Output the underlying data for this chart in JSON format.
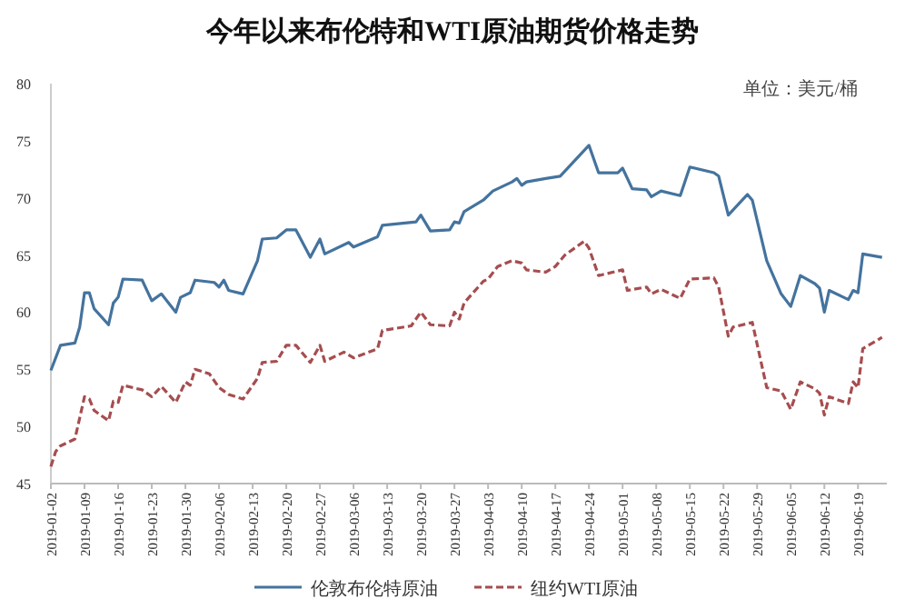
{
  "chart_data": {
    "type": "line",
    "title": "今年以来布伦特和WTI原油期货价格走势",
    "annotations": [
      "单位：美元/桶"
    ],
    "xlim": [
      "2019-01-02",
      "2019-06-25"
    ],
    "xticks": [
      "2019-01-02",
      "2019-01-09",
      "2019-01-16",
      "2019-01-23",
      "2019-01-30",
      "2019-02-06",
      "2019-02-13",
      "2019-02-20",
      "2019-02-27",
      "2019-03-06",
      "2019-03-13",
      "2019-03-20",
      "2019-03-27",
      "2019-04-03",
      "2019-04-10",
      "2019-04-17",
      "2019-04-24",
      "2019-05-01",
      "2019-05-08",
      "2019-05-15",
      "2019-05-22",
      "2019-05-29",
      "2019-06-05",
      "2019-06-12",
      "2019-06-19"
    ],
    "ylim": [
      45,
      80
    ],
    "yticks": [
      45,
      50,
      55,
      60,
      65,
      70,
      75,
      80
    ],
    "grid": false,
    "legend": "bottom",
    "series": [
      {
        "name": "伦敦布伦特原油",
        "color": "#44739e",
        "line_style": "solid",
        "x": [
          "2019-01-02",
          "2019-01-04",
          "2019-01-07",
          "2019-01-08",
          "2019-01-09",
          "2019-01-10",
          "2019-01-11",
          "2019-01-14",
          "2019-01-15",
          "2019-01-16",
          "2019-01-17",
          "2019-01-21",
          "2019-01-23",
          "2019-01-25",
          "2019-01-28",
          "2019-01-29",
          "2019-01-31",
          "2019-02-01",
          "2019-02-05",
          "2019-02-06",
          "2019-02-07",
          "2019-02-08",
          "2019-02-11",
          "2019-02-14",
          "2019-02-15",
          "2019-02-18",
          "2019-02-20",
          "2019-02-22",
          "2019-02-25",
          "2019-02-27",
          "2019-02-28",
          "2019-03-05",
          "2019-03-06",
          "2019-03-11",
          "2019-03-12",
          "2019-03-19",
          "2019-03-20",
          "2019-03-22",
          "2019-03-26",
          "2019-03-27",
          "2019-03-28",
          "2019-03-29",
          "2019-04-02",
          "2019-04-04",
          "2019-04-08",
          "2019-04-09",
          "2019-04-10",
          "2019-04-11",
          "2019-04-15",
          "2019-04-18",
          "2019-04-24",
          "2019-04-26",
          "2019-04-30",
          "2019-05-01",
          "2019-05-03",
          "2019-05-06",
          "2019-05-07",
          "2019-05-09",
          "2019-05-13",
          "2019-05-15",
          "2019-05-20",
          "2019-05-21",
          "2019-05-23",
          "2019-05-27",
          "2019-05-28",
          "2019-05-31",
          "2019-06-03",
          "2019-06-05",
          "2019-06-07",
          "2019-06-10",
          "2019-06-11",
          "2019-06-12",
          "2019-06-13",
          "2019-06-17",
          "2019-06-18",
          "2019-06-19",
          "2019-06-20",
          "2019-06-24"
        ],
        "values": [
          54.9,
          57.1,
          57.3,
          58.7,
          61.7,
          61.7,
          60.3,
          58.9,
          60.8,
          61.3,
          62.9,
          62.8,
          61.0,
          61.6,
          60.0,
          61.3,
          61.7,
          62.8,
          62.6,
          62.2,
          62.8,
          61.9,
          61.6,
          64.5,
          66.4,
          66.5,
          67.2,
          67.2,
          64.8,
          66.4,
          65.1,
          66.1,
          65.7,
          66.6,
          67.6,
          67.9,
          68.5,
          67.1,
          67.2,
          67.9,
          67.8,
          68.8,
          69.8,
          70.6,
          71.4,
          71.7,
          71.1,
          71.4,
          71.7,
          71.9,
          74.6,
          72.2,
          72.2,
          72.6,
          70.8,
          70.7,
          70.1,
          70.6,
          70.2,
          72.7,
          72.2,
          71.9,
          68.5,
          70.3,
          69.8,
          64.5,
          61.6,
          60.5,
          63.2,
          62.5,
          62.1,
          60.0,
          61.9,
          61.1,
          61.9,
          61.7,
          65.1,
          64.8
        ]
      },
      {
        "name": "纽约WTI原油",
        "color": "#a64d4f",
        "line_style": "dashed",
        "x": [
          "2019-01-02",
          "2019-01-03",
          "2019-01-04",
          "2019-01-07",
          "2019-01-09",
          "2019-01-10",
          "2019-01-11",
          "2019-01-14",
          "2019-01-15",
          "2019-01-16",
          "2019-01-17",
          "2019-01-21",
          "2019-01-23",
          "2019-01-25",
          "2019-01-28",
          "2019-01-30",
          "2019-01-31",
          "2019-02-01",
          "2019-02-04",
          "2019-02-06",
          "2019-02-08",
          "2019-02-11",
          "2019-02-14",
          "2019-02-15",
          "2019-02-18",
          "2019-02-20",
          "2019-02-22",
          "2019-02-25",
          "2019-02-27",
          "2019-02-28",
          "2019-03-04",
          "2019-03-06",
          "2019-03-11",
          "2019-03-12",
          "2019-03-18",
          "2019-03-20",
          "2019-03-22",
          "2019-03-26",
          "2019-03-27",
          "2019-03-28",
          "2019-03-29",
          "2019-04-02",
          "2019-04-03",
          "2019-04-05",
          "2019-04-08",
          "2019-04-10",
          "2019-04-11",
          "2019-04-15",
          "2019-04-17",
          "2019-04-19",
          "2019-04-23",
          "2019-04-24",
          "2019-04-26",
          "2019-05-01",
          "2019-05-02",
          "2019-05-06",
          "2019-05-07",
          "2019-05-09",
          "2019-05-13",
          "2019-05-15",
          "2019-05-20",
          "2019-05-21",
          "2019-05-23",
          "2019-05-24",
          "2019-05-28",
          "2019-05-31",
          "2019-06-03",
          "2019-06-05",
          "2019-06-07",
          "2019-06-10",
          "2019-06-11",
          "2019-06-12",
          "2019-06-13",
          "2019-06-17",
          "2019-06-18",
          "2019-06-19",
          "2019-06-20",
          "2019-06-24"
        ],
        "values": [
          46.5,
          47.8,
          48.3,
          48.9,
          52.6,
          52.4,
          51.4,
          50.5,
          52.2,
          52.1,
          53.6,
          53.2,
          52.6,
          53.5,
          52.1,
          53.9,
          53.6,
          55.0,
          54.6,
          53.4,
          52.8,
          52.4,
          54.2,
          55.6,
          55.7,
          57.1,
          57.1,
          55.6,
          57.1,
          55.7,
          56.5,
          56.0,
          56.8,
          58.4,
          58.8,
          60.0,
          58.9,
          58.8,
          60.0,
          59.4,
          60.8,
          62.7,
          62.9,
          64.0,
          64.5,
          64.3,
          63.7,
          63.5,
          64.0,
          65.0,
          66.2,
          65.6,
          63.2,
          63.7,
          61.9,
          62.2,
          61.6,
          62.0,
          61.2,
          62.9,
          63.0,
          62.2,
          57.9,
          58.7,
          59.1,
          53.4,
          53.1,
          51.5,
          53.9,
          53.3,
          52.9,
          51.0,
          52.6,
          52.0,
          53.9,
          53.4,
          56.8,
          57.8
        ]
      }
    ]
  }
}
